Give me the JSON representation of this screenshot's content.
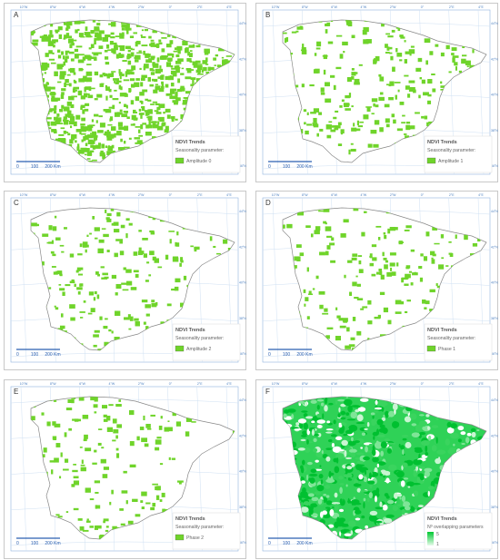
{
  "graticule": {
    "longitudes": [
      "10°W",
      "8°W",
      "6°W",
      "4°W",
      "2°W",
      "0°",
      "2°E",
      "4°E"
    ],
    "latitudes": [
      "44°N",
      "42°N",
      "40°N",
      "38°N",
      "36°N"
    ]
  },
  "panels": [
    {
      "letter": "A",
      "legend": {
        "title": "NDVI Trends",
        "subtitle": "Seasonality parameter:",
        "item": "Amplitude 0"
      },
      "scale": [
        "0",
        "100",
        "200 Km"
      ]
    },
    {
      "letter": "B",
      "legend": {
        "title": "NDVI Trends",
        "subtitle": "Seasonality parameter:",
        "item": "Amplitude 1"
      },
      "scale": [
        "0",
        "100",
        "200 Km"
      ]
    },
    {
      "letter": "C",
      "legend": {
        "title": "NDVI Trends",
        "subtitle": "Seasonality parameter:",
        "item": "Amplitude 2"
      },
      "scale": [
        "0",
        "100",
        "200 Km"
      ]
    },
    {
      "letter": "D",
      "legend": {
        "title": "NDVI Trends",
        "subtitle": "Seasonality parameter:",
        "item": "Phase 1"
      },
      "scale": [
        "0",
        "100",
        "200 Km"
      ]
    },
    {
      "letter": "E",
      "legend": {
        "title": "NDVI Trends",
        "subtitle": "Seasonality parameter:",
        "item": "Phase 2"
      },
      "scale": [
        "0",
        "100",
        "200 Km"
      ]
    },
    {
      "letter": "F",
      "legend": {
        "title": "NDVI Trends",
        "subtitle": "Nº overlapping parameters",
        "max": "5",
        "min": "1"
      },
      "scale": [
        "0",
        "100",
        "200 Km"
      ]
    }
  ]
}
